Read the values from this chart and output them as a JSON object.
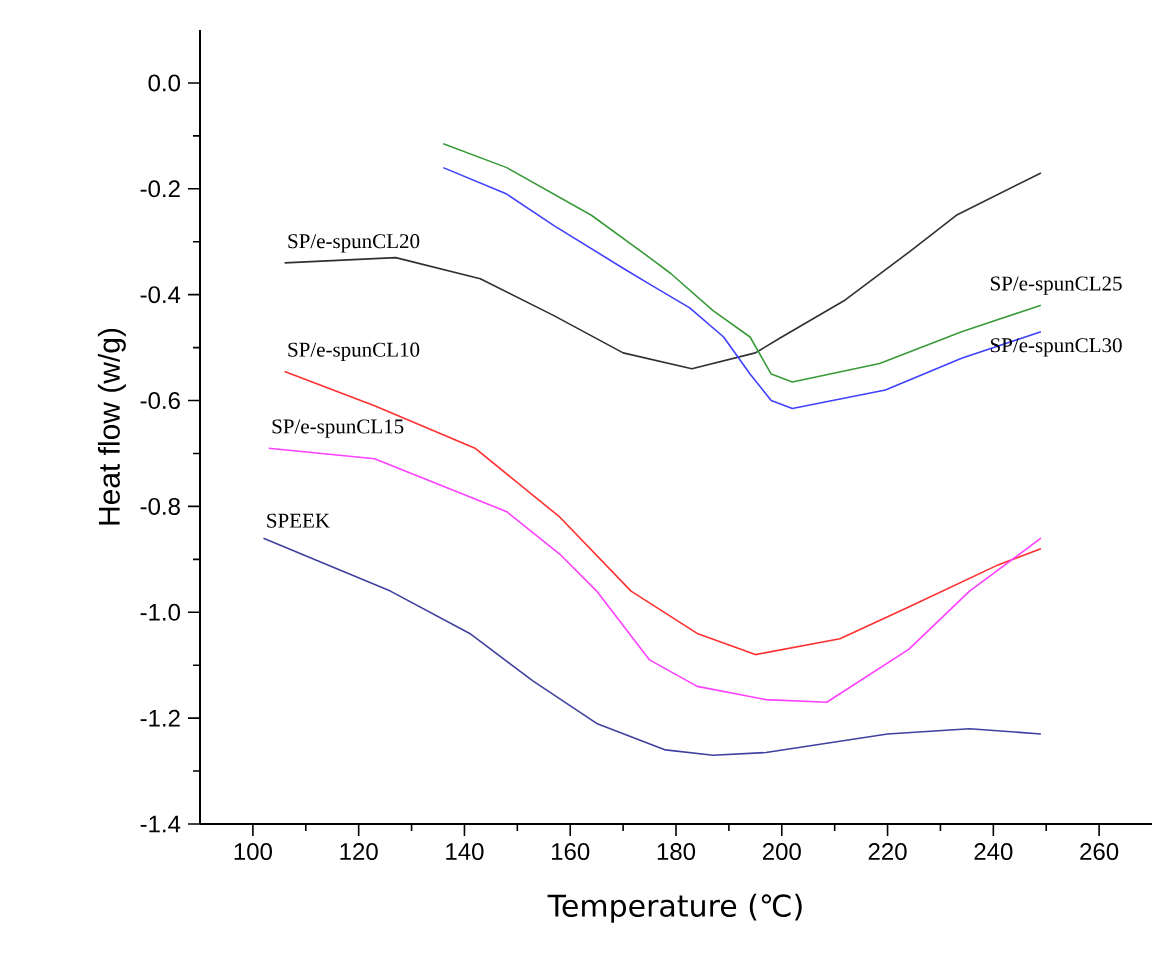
{
  "chart_data": {
    "type": "line",
    "xlabel": "Temperature (℃)",
    "ylabel": "Heat flow (w/g)",
    "xlim": [
      90,
      270
    ],
    "ylim": [
      -1.4,
      0.1
    ],
    "xticks": [
      100,
      120,
      140,
      160,
      180,
      200,
      220,
      240,
      260
    ],
    "yticks": [
      {
        "value": 0.0,
        "label": "0.0"
      },
      -0.2,
      -0.4,
      -0.6,
      -0.8,
      {
        "value": -1.0,
        "label": "-1.0"
      },
      -1.2,
      -1.4
    ],
    "series": [
      {
        "name": "SP/e-spunCL20",
        "color": "#303030",
        "x": [
          106,
          127,
          143,
          157,
          170,
          183,
          195,
          200,
          212,
          224,
          233,
          249
        ],
        "values": [
          -0.34,
          -0.33,
          -0.37,
          -0.44,
          -0.51,
          -0.54,
          -0.51,
          -0.48,
          -0.41,
          -0.32,
          -0.25,
          -0.17
        ]
      },
      {
        "name": "SP/e-spunCL25",
        "color": "#3a9a3a",
        "x": [
          136,
          148,
          164,
          175,
          179,
          187,
          194,
          198,
          202,
          218.5,
          234,
          249
        ],
        "values": [
          -0.115,
          -0.16,
          -0.25,
          -0.33,
          -0.36,
          -0.43,
          -0.48,
          -0.55,
          -0.565,
          -0.53,
          -0.47,
          -0.42
        ]
      },
      {
        "name": "SP/e-spunCL30",
        "color": "#4040ff",
        "x": [
          136,
          148,
          157,
          170,
          175,
          182.6,
          189,
          194,
          198,
          202,
          219.6,
          234,
          249
        ],
        "values": [
          -0.16,
          -0.21,
          -0.27,
          -0.35,
          -0.38,
          -0.425,
          -0.48,
          -0.55,
          -0.6,
          -0.615,
          -0.58,
          -0.52,
          -0.47
        ]
      },
      {
        "name": "SP/e-spunCL10",
        "color": "#ff3030",
        "x": [
          106,
          123,
          142,
          158,
          171.5,
          184,
          195,
          211,
          224,
          241,
          249
        ],
        "values": [
          -0.545,
          -0.61,
          -0.69,
          -0.82,
          -0.96,
          -1.04,
          -1.08,
          -1.05,
          -0.99,
          -0.91,
          -0.88
        ]
      },
      {
        "name": "SP/e-spunCL15",
        "color": "#ff40ff",
        "x": [
          103,
          123,
          138,
          148,
          158,
          165,
          175,
          184,
          197,
          208.5,
          224,
          235.5,
          249
        ],
        "values": [
          -0.69,
          -0.71,
          -0.77,
          -0.81,
          -0.89,
          -0.96,
          -1.09,
          -1.14,
          -1.165,
          -1.17,
          -1.07,
          -0.96,
          -0.86
        ]
      },
      {
        "name": "SPEEK",
        "color": "#4040a0",
        "x": [
          102,
          126,
          141,
          153,
          165,
          178,
          187,
          197,
          220,
          235.5,
          249
        ],
        "values": [
          -0.86,
          -0.96,
          -1.04,
          -1.13,
          -1.21,
          -1.26,
          -1.27,
          -1.265,
          -1.23,
          -1.22,
          -1.23
        ]
      }
    ]
  }
}
